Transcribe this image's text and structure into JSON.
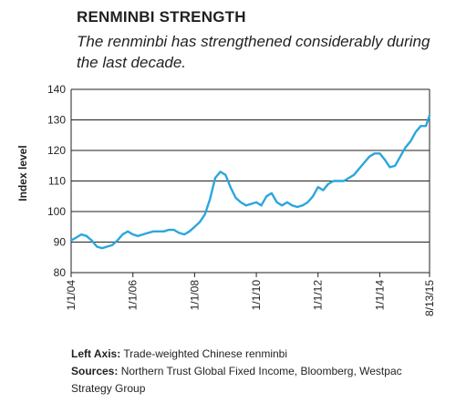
{
  "header": {
    "title": "RENMINBI STRENGTH",
    "subtitle": "The renminbi has strengthened considerably during the last decade."
  },
  "footnotes": {
    "left_axis_label": "Left Axis:",
    "left_axis_text": "Trade-weighted Chinese renminbi",
    "sources_label": "Sources:",
    "sources_text": "Northern Trust Global Fixed Income, Bloomberg, Westpac Strategy Group"
  },
  "colors": {
    "line": "#2ba6dd",
    "grid": "#231f20"
  },
  "chart_data": {
    "type": "line",
    "ylabel": "Index level",
    "ylim": [
      80,
      140
    ],
    "yticks": [
      80,
      90,
      100,
      110,
      120,
      130,
      140
    ],
    "xlim": [
      "2004-01-01",
      "2015-08-13"
    ],
    "xticks": [
      {
        "date": "2004-01-01",
        "label": "1/1/04"
      },
      {
        "date": "2006-01-01",
        "label": "1/1/06"
      },
      {
        "date": "2008-01-01",
        "label": "1/1/08"
      },
      {
        "date": "2010-01-01",
        "label": "1/1/10"
      },
      {
        "date": "2012-01-01",
        "label": "1/1/12"
      },
      {
        "date": "2014-01-01",
        "label": "1/1/14"
      },
      {
        "date": "2015-08-13",
        "label": "8/13/15"
      }
    ],
    "grid": "horizontal",
    "series": [
      {
        "x": [
          "2004-01-01",
          "2004-03-01",
          "2004-05-01",
          "2004-07-01",
          "2004-09-01",
          "2004-11-01",
          "2005-01-01",
          "2005-03-01",
          "2005-05-01",
          "2005-07-01",
          "2005-09-01",
          "2005-11-01",
          "2006-01-01",
          "2006-03-01",
          "2006-05-01",
          "2006-07-01",
          "2006-09-01",
          "2006-11-01",
          "2007-01-01",
          "2007-03-01",
          "2007-05-01",
          "2007-07-01",
          "2007-09-01",
          "2007-11-01",
          "2008-01-01",
          "2008-03-01",
          "2008-05-01",
          "2008-07-01",
          "2008-09-01",
          "2008-11-01",
          "2009-01-01",
          "2009-03-01",
          "2009-05-01",
          "2009-07-01",
          "2009-09-01",
          "2009-11-01",
          "2010-01-01",
          "2010-03-01",
          "2010-05-01",
          "2010-07-01",
          "2010-09-01",
          "2010-11-01",
          "2011-01-01",
          "2011-03-01",
          "2011-05-01",
          "2011-07-01",
          "2011-09-01",
          "2011-11-01",
          "2012-01-01",
          "2012-03-01",
          "2012-05-01",
          "2012-07-01",
          "2012-09-01",
          "2012-11-01",
          "2013-01-01",
          "2013-03-01",
          "2013-05-01",
          "2013-07-01",
          "2013-09-01",
          "2013-11-01",
          "2014-01-01",
          "2014-03-01",
          "2014-05-01",
          "2014-07-01",
          "2014-09-01",
          "2014-11-01",
          "2015-01-01",
          "2015-03-01",
          "2015-05-01",
          "2015-07-01",
          "2015-08-13"
        ],
        "values": [
          90.5,
          91.5,
          92.5,
          92,
          90.5,
          88.5,
          88,
          88.5,
          89,
          90.5,
          92.5,
          93.5,
          92.5,
          92,
          92.5,
          93,
          93.5,
          93.5,
          93.5,
          94,
          94,
          93,
          92.5,
          93.5,
          95,
          96.5,
          99,
          104,
          111,
          113,
          112,
          108,
          104.5,
          103,
          102,
          102.5,
          103,
          102,
          105,
          106,
          103,
          102,
          103,
          102,
          101.5,
          102,
          103,
          105,
          108,
          107,
          109,
          110,
          110,
          110,
          111,
          112,
          114,
          116,
          118,
          119,
          119,
          117,
          114.5,
          115,
          118,
          121,
          123,
          126,
          128,
          128,
          131.5
        ]
      }
    ]
  }
}
